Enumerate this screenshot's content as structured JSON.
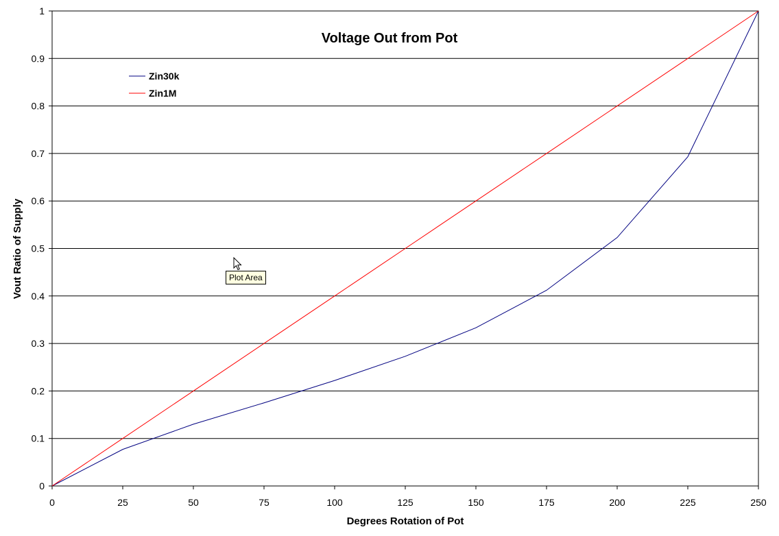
{
  "chart_data": {
    "type": "line",
    "title": "Voltage Out from Pot",
    "xlabel": "Degrees Rotation of Pot",
    "ylabel": "Vout Ratio of Supply",
    "xlim": [
      0,
      250
    ],
    "ylim": [
      0,
      1
    ],
    "xticks": [
      "0",
      "25",
      "50",
      "75",
      "100",
      "125",
      "150",
      "175",
      "200",
      "225",
      "250"
    ],
    "yticks": [
      "0",
      "0.1",
      "0.2",
      "0.3",
      "0.4",
      "0.5",
      "0.6",
      "0.7",
      "0.8",
      "0.9",
      "1"
    ],
    "grid": "horizontal",
    "legend_position": "top-left",
    "x": [
      0,
      25,
      50,
      75,
      100,
      125,
      150,
      175,
      200,
      225,
      250
    ],
    "series": [
      {
        "name": "Zin30k",
        "color": "#000080",
        "values": [
          0,
          0.077,
          0.13,
          0.175,
          0.222,
          0.273,
          0.333,
          0.412,
          0.523,
          0.693,
          1.0
        ]
      },
      {
        "name": "Zin1M",
        "color": "#ff0000",
        "values": [
          0,
          0.1,
          0.2,
          0.3,
          0.4,
          0.5,
          0.6,
          0.7,
          0.8,
          0.9,
          1.0
        ]
      }
    ]
  },
  "tooltip": {
    "text": "Plot Area"
  },
  "cursor": {
    "icon": "mouse-pointer-icon"
  }
}
